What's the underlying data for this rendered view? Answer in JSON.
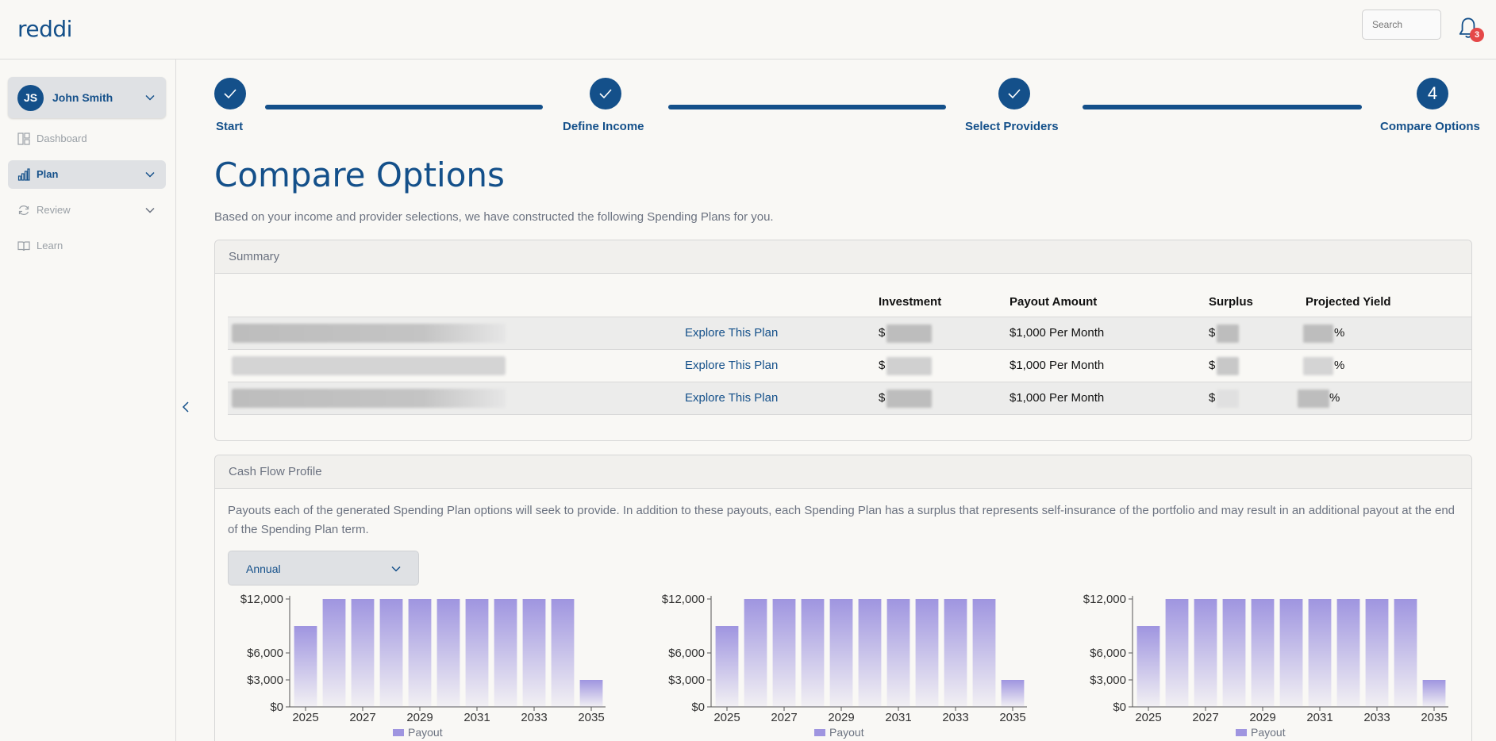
{
  "header": {
    "logo": "reddi",
    "search_placeholder": "Search",
    "notification_count": "3"
  },
  "sidebar": {
    "user": {
      "initials": "JS",
      "name": "John Smith"
    },
    "items": [
      {
        "label": "Dashboard",
        "icon": "dashboard-icon"
      },
      {
        "label": "Plan",
        "icon": "bar-chart-icon",
        "active": true
      },
      {
        "label": "Review",
        "icon": "refresh-icon"
      },
      {
        "label": "Learn",
        "icon": "book-icon"
      }
    ]
  },
  "stepper": {
    "steps": [
      {
        "label": "Start",
        "state": "done"
      },
      {
        "label": "Define Income",
        "state": "done"
      },
      {
        "label": "Select Providers",
        "state": "done"
      },
      {
        "label": "Compare Options",
        "state": "current",
        "number": "4"
      }
    ]
  },
  "page": {
    "title": "Compare Options",
    "intro": "Based on your income and provider selections, we have constructed the following Spending Plans for you."
  },
  "summary": {
    "title": "Summary",
    "columns": [
      "Investment",
      "Payout Amount",
      "Surplus",
      "Projected Yield"
    ],
    "rows": [
      {
        "link": "Explore This Plan",
        "investment_prefix": "$",
        "payout": "$1,000 Per Month",
        "surplus_prefix": "$",
        "yield_suffix": "%"
      },
      {
        "link": "Explore This Plan",
        "investment_prefix": "$",
        "payout": "$1,000 Per Month",
        "surplus_prefix": "$",
        "yield_suffix": "%"
      },
      {
        "link": "Explore This Plan",
        "investment_prefix": "$",
        "payout": "$1,000 Per Month",
        "surplus_prefix": "$",
        "yield_suffix": "%"
      }
    ]
  },
  "cashflow": {
    "title": "Cash Flow Profile",
    "description": "Payouts each of the generated Spending Plan options will seek to provide. In addition to these payouts, each Spending Plan has a surplus that represents self-insurance of the portfolio and may result in an additional payout at the end of the Spending Plan term.",
    "period_select": "Annual"
  },
  "chart_data": [
    {
      "type": "bar",
      "categories": [
        2025,
        2026,
        2027,
        2028,
        2029,
        2030,
        2031,
        2032,
        2033,
        2034,
        2035
      ],
      "series": [
        {
          "name": "Payout",
          "values": [
            9000,
            12000,
            12000,
            12000,
            12000,
            12000,
            12000,
            12000,
            12000,
            12000,
            3000
          ]
        }
      ],
      "x_tick_labels": [
        "2025",
        "2027",
        "2029",
        "2031",
        "2033",
        "2035"
      ],
      "y_tick_labels": [
        "$12,000",
        "$6,000",
        "$3,000",
        "$0"
      ],
      "y_ticks": [
        12000,
        6000,
        3000,
        0
      ],
      "ylim": [
        0,
        12000
      ],
      "legend": "bottom",
      "color": "#9f95e0"
    },
    {
      "type": "bar",
      "categories": [
        2025,
        2026,
        2027,
        2028,
        2029,
        2030,
        2031,
        2032,
        2033,
        2034,
        2035
      ],
      "series": [
        {
          "name": "Payout",
          "values": [
            9000,
            12000,
            12000,
            12000,
            12000,
            12000,
            12000,
            12000,
            12000,
            12000,
            3000
          ]
        }
      ],
      "x_tick_labels": [
        "2025",
        "2027",
        "2029",
        "2031",
        "2033",
        "2035"
      ],
      "y_tick_labels": [
        "$12,000",
        "$6,000",
        "$3,000",
        "$0"
      ],
      "y_ticks": [
        12000,
        6000,
        3000,
        0
      ],
      "ylim": [
        0,
        12000
      ],
      "legend": "bottom",
      "color": "#9f95e0"
    },
    {
      "type": "bar",
      "categories": [
        2025,
        2026,
        2027,
        2028,
        2029,
        2030,
        2031,
        2032,
        2033,
        2034,
        2035
      ],
      "series": [
        {
          "name": "Payout",
          "values": [
            9000,
            12000,
            12000,
            12000,
            12000,
            12000,
            12000,
            12000,
            12000,
            12000,
            3000
          ]
        }
      ],
      "x_tick_labels": [
        "2025",
        "2027",
        "2029",
        "2031",
        "2033",
        "2035"
      ],
      "y_tick_labels": [
        "$12,000",
        "$6,000",
        "$3,000",
        "$0"
      ],
      "y_ticks": [
        12000,
        6000,
        3000,
        0
      ],
      "ylim": [
        0,
        12000
      ],
      "legend": "bottom",
      "color": "#9f95e0"
    }
  ]
}
